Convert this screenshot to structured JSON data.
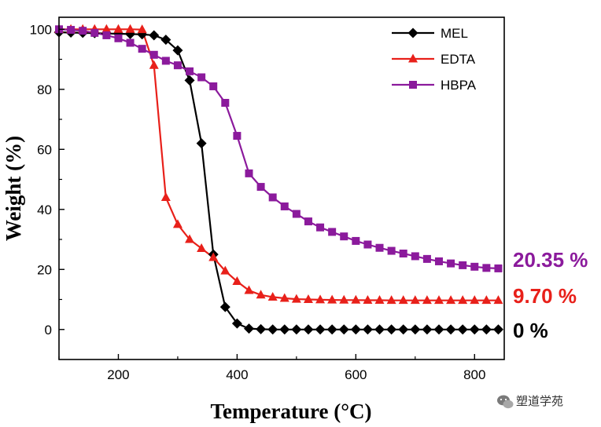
{
  "chart_data": {
    "type": "line",
    "xlabel": "Temperature (°C)",
    "ylabel": "Weight (%)",
    "xlim": [
      100,
      850
    ],
    "ylim": [
      -10,
      104
    ],
    "xticks": [
      200,
      400,
      600,
      800
    ],
    "yticks": [
      0,
      20,
      40,
      60,
      80,
      100
    ],
    "grid": false,
    "legend_position": "top-right",
    "series": [
      {
        "name": "MEL",
        "color": "#000000",
        "marker": "diamond",
        "x": [
          100,
          120,
          140,
          160,
          180,
          200,
          220,
          240,
          260,
          280,
          300,
          320,
          340,
          360,
          380,
          400,
          420,
          440,
          460,
          480,
          500,
          520,
          540,
          560,
          580,
          600,
          620,
          640,
          660,
          680,
          700,
          720,
          740,
          760,
          780,
          800,
          820,
          840
        ],
        "y": [
          99,
          98.9,
          98.8,
          98.7,
          98.6,
          98.5,
          98.4,
          98.3,
          98,
          96.5,
          93,
          83,
          62,
          25,
          7.5,
          2,
          0.3,
          0.1,
          0,
          0,
          0,
          0,
          0,
          0,
          0,
          0,
          0,
          0,
          0,
          0,
          0,
          0,
          0,
          0,
          0,
          0,
          0,
          0
        ]
      },
      {
        "name": "EDTA",
        "color": "#e8201a",
        "marker": "triangle",
        "x": [
          100,
          120,
          140,
          160,
          180,
          200,
          220,
          240,
          260,
          280,
          300,
          320,
          340,
          360,
          380,
          400,
          420,
          440,
          460,
          480,
          500,
          520,
          540,
          560,
          580,
          600,
          620,
          640,
          660,
          680,
          700,
          720,
          740,
          760,
          780,
          800,
          820,
          840
        ],
        "y": [
          100,
          100,
          100,
          100,
          100,
          100,
          100,
          99.9,
          88,
          44,
          35,
          30,
          27,
          24,
          19.5,
          16,
          13,
          11.5,
          10.8,
          10.4,
          10.1,
          10,
          9.9,
          9.85,
          9.8,
          9.8,
          9.75,
          9.75,
          9.7,
          9.7,
          9.7,
          9.7,
          9.7,
          9.7,
          9.7,
          9.7,
          9.7,
          9.7
        ]
      },
      {
        "name": "HBPA",
        "color": "#8b1a9c",
        "marker": "square",
        "x": [
          100,
          120,
          140,
          160,
          180,
          200,
          220,
          240,
          260,
          280,
          300,
          320,
          340,
          360,
          380,
          400,
          420,
          440,
          460,
          480,
          500,
          520,
          540,
          560,
          580,
          600,
          620,
          640,
          660,
          680,
          700,
          720,
          740,
          760,
          780,
          800,
          820,
          840
        ],
        "y": [
          100,
          99.8,
          99.5,
          98.8,
          98,
          97,
          95.5,
          93.5,
          91.5,
          89.5,
          88,
          86,
          84,
          81,
          75.5,
          64.5,
          52,
          47.5,
          44,
          41,
          38.5,
          36,
          34,
          32.5,
          31,
          29.5,
          28.3,
          27.2,
          26.2,
          25.3,
          24.4,
          23.5,
          22.7,
          22,
          21.4,
          20.9,
          20.5,
          20.35
        ]
      }
    ],
    "end_labels": [
      {
        "text": "20.35 %",
        "color": "#8b1a9c",
        "value": 20.35
      },
      {
        "text": "9.70 %",
        "color": "#e8201a",
        "value": 9.7
      },
      {
        "text": "0 %",
        "color": "#000000",
        "value": 0
      }
    ]
  },
  "watermark": {
    "text": "塑道学苑",
    "icon": "wechat-icon"
  }
}
